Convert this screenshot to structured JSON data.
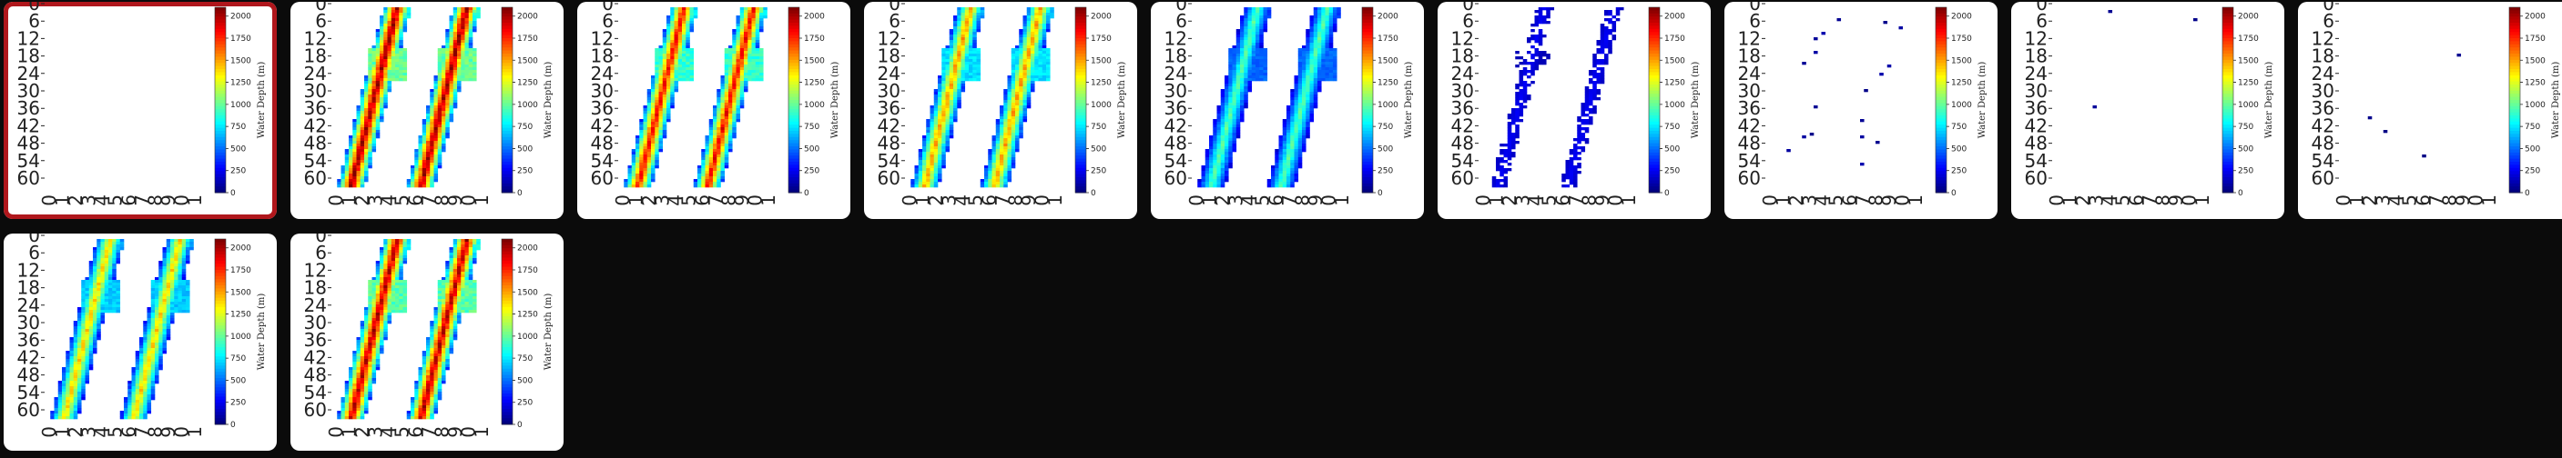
{
  "gallery": {
    "selected_index": 0,
    "colorbar": {
      "label": "Water Depth (m)",
      "ticks": [
        "0",
        "250",
        "500",
        "750",
        "1000",
        "1250",
        "1500",
        "1750",
        "2000"
      ]
    },
    "y_ticks": [
      "0",
      "6",
      "12",
      "18",
      "24",
      "30",
      "36",
      "42",
      "48",
      "54",
      "60"
    ],
    "x_ticks": [
      "0",
      "1",
      "2",
      "3",
      "4",
      "5",
      "6",
      "7",
      "8",
      "9",
      "0",
      "1"
    ],
    "colors": {
      "selected_border": "#b0171c",
      "page_background": "#0b0b0b",
      "tile_background": "#ffffff"
    },
    "tiles": [
      {
        "fill": "none",
        "intensity": 0.0
      },
      {
        "fill": "full",
        "intensity": 0.95
      },
      {
        "fill": "full",
        "intensity": 0.85
      },
      {
        "fill": "full",
        "intensity": 0.7
      },
      {
        "fill": "full",
        "intensity": 0.45
      },
      {
        "fill": "strips",
        "intensity": 0.12
      },
      {
        "fill": "scatter",
        "intensity": 0.05
      },
      {
        "fill": "dots",
        "intensity": 0.03
      },
      {
        "fill": "dots",
        "intensity": 0.02
      },
      {
        "fill": "full",
        "intensity": 0.65
      },
      {
        "fill": "full",
        "intensity": 0.92
      }
    ]
  }
}
